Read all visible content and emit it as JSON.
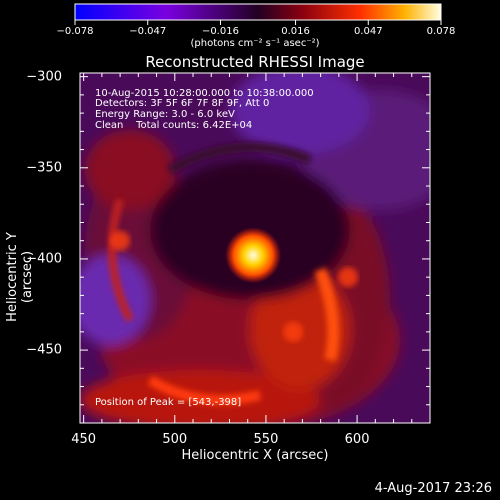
{
  "chart_data": {
    "type": "heatmap",
    "title": "Reconstructed RHESSI Image",
    "xlabel": "Heliocentric X (arcsec)",
    "ylabel": "Heliocentric Y (arcsec)",
    "xlim": [
      448,
      640
    ],
    "ylim": [
      -490,
      -298
    ],
    "x_ticks": [
      "450",
      "500",
      "550",
      "600"
    ],
    "y_ticks": [
      "-300",
      "-350",
      "-400",
      "-450"
    ],
    "colorbar": {
      "range": [
        -0.078,
        0.078
      ],
      "ticks": [
        "-0.078",
        "-0.047",
        "-0.016",
        "0.016",
        "0.047",
        "0.078"
      ],
      "unit_label": "(photons cm⁻² s⁻¹ asec⁻²)"
    },
    "info": {
      "time": "10-Aug-2015 10:28:00.000 to 10:38:00.000",
      "detectors": "Detectors: 3F 5F 6F 7F 8F 9F, Att 0",
      "energy": "Energy Range: 3.0 - 6.0 keV",
      "clean": "Clean    Total counts: 6.42E+04"
    },
    "peak": {
      "label": "Position of Peak = [543,-398]",
      "x": 543,
      "y": -398,
      "value": 0.078
    },
    "secondary_features": [
      {
        "x": 565,
        "y": -440,
        "value": 0.03
      },
      {
        "x": 470,
        "y": -390,
        "value": 0.025
      },
      {
        "x": 595,
        "y": -410,
        "value": 0.035
      }
    ]
  },
  "footer_date": "4-Aug-2017 23:26"
}
